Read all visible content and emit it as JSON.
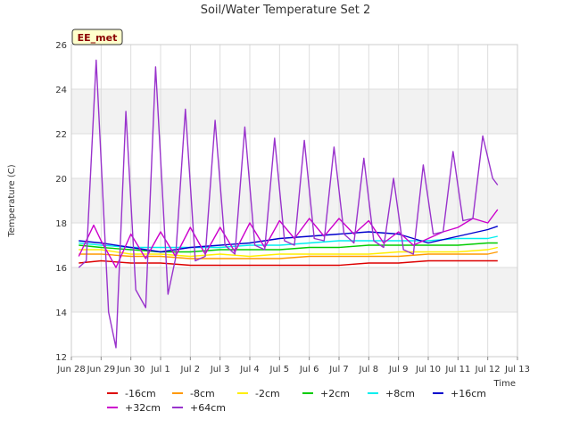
{
  "chart_data": {
    "type": "line",
    "title": "Soil/Water Temperature Set 2",
    "xlabel": "Time",
    "ylabel": "Temperature (C)",
    "ylim": [
      12,
      26
    ],
    "xlim": [
      "2024-06-28",
      "2024-07-13"
    ],
    "y_ticks": [
      12,
      14,
      16,
      18,
      20,
      22,
      24,
      26
    ],
    "x_ticks": [
      "Jun 28",
      "Jun 29",
      "Jun 30",
      "Jul 1",
      "Jul 2",
      "Jul 3",
      "Jul 4",
      "Jul 5",
      "Jul 6",
      "Jul 7",
      "Jul 8",
      "Jul 9",
      "Jul 10",
      "Jul 11",
      "Jul 12",
      "Jul 13"
    ],
    "x_tick_labels": [
      "Jun 28",
      "Jun 29",
      "Jun 30",
      "Jul 1",
      "Jul 2",
      "Jul 3",
      "Jul 4",
      "Jul 5",
      "Jul 6",
      "Jul 7",
      "Jul 8",
      "Jul 9",
      "Jul 10",
      "Jul 11",
      "Jul 12",
      "Jul 13"
    ],
    "grid": true,
    "legend_position": "bottom",
    "station_badge": "EE_met",
    "series": [
      {
        "name": "-16cm",
        "color": "#dd0000",
        "x": [
          "2024-06-28 06:00",
          "2024-06-29 00:00",
          "2024-06-30 00:00",
          "2024-07-01 00:00",
          "2024-07-02 00:00",
          "2024-07-03 00:00",
          "2024-07-04 00:00",
          "2024-07-05 00:00",
          "2024-07-06 00:00",
          "2024-07-07 00:00",
          "2024-07-08 00:00",
          "2024-07-09 00:00",
          "2024-07-10 00:00",
          "2024-07-11 00:00",
          "2024-07-12 00:00",
          "2024-07-12 08:00"
        ],
        "y": [
          16.2,
          16.3,
          16.2,
          16.2,
          16.1,
          16.1,
          16.1,
          16.1,
          16.1,
          16.1,
          16.2,
          16.2,
          16.3,
          16.3,
          16.3,
          16.3
        ]
      },
      {
        "name": "-8cm",
        "color": "#ff9900",
        "x": [
          "2024-06-28 06:00",
          "2024-06-29 00:00",
          "2024-06-30 00:00",
          "2024-07-01 00:00",
          "2024-07-02 00:00",
          "2024-07-03 00:00",
          "2024-07-04 00:00",
          "2024-07-05 00:00",
          "2024-07-06 00:00",
          "2024-07-07 00:00",
          "2024-07-08 00:00",
          "2024-07-09 00:00",
          "2024-07-10 00:00",
          "2024-07-11 00:00",
          "2024-07-12 00:00",
          "2024-07-12 08:00"
        ],
        "y": [
          16.6,
          16.6,
          16.5,
          16.5,
          16.4,
          16.4,
          16.4,
          16.4,
          16.5,
          16.5,
          16.5,
          16.5,
          16.6,
          16.6,
          16.6,
          16.7
        ]
      },
      {
        "name": "-2cm",
        "color": "#ffee00",
        "x": [
          "2024-06-28 06:00",
          "2024-06-29 00:00",
          "2024-06-30 00:00",
          "2024-07-01 00:00",
          "2024-07-02 00:00",
          "2024-07-03 00:00",
          "2024-07-04 00:00",
          "2024-07-05 00:00",
          "2024-07-06 00:00",
          "2024-07-07 00:00",
          "2024-07-08 00:00",
          "2024-07-09 00:00",
          "2024-07-10 00:00",
          "2024-07-11 00:00",
          "2024-07-12 00:00",
          "2024-07-12 08:00"
        ],
        "y": [
          16.8,
          16.8,
          16.6,
          16.6,
          16.5,
          16.6,
          16.5,
          16.6,
          16.6,
          16.6,
          16.6,
          16.7,
          16.7,
          16.7,
          16.8,
          16.9
        ]
      },
      {
        "name": "+2cm",
        "color": "#00cc00",
        "x": [
          "2024-06-28 06:00",
          "2024-06-29 00:00",
          "2024-06-30 00:00",
          "2024-07-01 00:00",
          "2024-07-02 00:00",
          "2024-07-03 00:00",
          "2024-07-04 00:00",
          "2024-07-05 00:00",
          "2024-07-06 00:00",
          "2024-07-07 00:00",
          "2024-07-08 00:00",
          "2024-07-09 00:00",
          "2024-07-10 00:00",
          "2024-07-11 00:00",
          "2024-07-12 00:00",
          "2024-07-12 08:00"
        ],
        "y": [
          17.0,
          16.9,
          16.8,
          16.7,
          16.7,
          16.8,
          16.8,
          16.8,
          16.9,
          16.9,
          17.0,
          17.0,
          17.0,
          17.0,
          17.1,
          17.1
        ]
      },
      {
        "name": "+8cm",
        "color": "#00eeee",
        "x": [
          "2024-06-28 06:00",
          "2024-06-29 00:00",
          "2024-06-30 00:00",
          "2024-07-01 00:00",
          "2024-07-02 00:00",
          "2024-07-03 00:00",
          "2024-07-04 00:00",
          "2024-07-05 00:00",
          "2024-07-06 00:00",
          "2024-07-07 00:00",
          "2024-07-08 00:00",
          "2024-07-09 00:00",
          "2024-07-10 00:00",
          "2024-07-11 00:00",
          "2024-07-12 00:00",
          "2024-07-12 08:00"
        ],
        "y": [
          17.1,
          17.0,
          16.9,
          16.9,
          16.9,
          16.9,
          17.0,
          17.0,
          17.1,
          17.2,
          17.2,
          17.2,
          17.2,
          17.3,
          17.3,
          17.4
        ]
      },
      {
        "name": "+16cm",
        "color": "#0000cc",
        "x": [
          "2024-06-28 06:00",
          "2024-06-29 00:00",
          "2024-06-30 00:00",
          "2024-07-01 00:00",
          "2024-07-02 00:00",
          "2024-07-03 00:00",
          "2024-07-04 00:00",
          "2024-07-05 00:00",
          "2024-07-06 00:00",
          "2024-07-07 00:00",
          "2024-07-08 00:00",
          "2024-07-09 00:00",
          "2024-07-10 00:00",
          "2024-07-11 00:00",
          "2024-07-12 00:00",
          "2024-07-12 08:00"
        ],
        "y": [
          17.2,
          17.1,
          16.9,
          16.7,
          16.9,
          17.0,
          17.1,
          17.3,
          17.4,
          17.5,
          17.6,
          17.5,
          17.1,
          17.4,
          17.7,
          17.85
        ]
      },
      {
        "name": "+32cm",
        "color": "#cc00cc",
        "x": [
          "2024-06-28 06:00",
          "2024-06-28 18:00",
          "2024-06-29 00:00",
          "2024-06-29 12:00",
          "2024-06-30 00:00",
          "2024-06-30 12:00",
          "2024-07-01 00:00",
          "2024-07-01 12:00",
          "2024-07-02 00:00",
          "2024-07-02 12:00",
          "2024-07-03 00:00",
          "2024-07-03 12:00",
          "2024-07-04 00:00",
          "2024-07-04 12:00",
          "2024-07-05 00:00",
          "2024-07-05 12:00",
          "2024-07-06 00:00",
          "2024-07-06 12:00",
          "2024-07-07 00:00",
          "2024-07-07 12:00",
          "2024-07-08 00:00",
          "2024-07-08 12:00",
          "2024-07-09 00:00",
          "2024-07-09 12:00",
          "2024-07-10 00:00",
          "2024-07-10 12:00",
          "2024-07-11 00:00",
          "2024-07-11 12:00",
          "2024-07-12 00:00",
          "2024-07-12 08:00"
        ],
        "y": [
          16.5,
          17.9,
          17.2,
          16.0,
          17.5,
          16.4,
          17.6,
          16.5,
          17.8,
          16.6,
          17.8,
          16.7,
          18.0,
          16.9,
          18.1,
          17.3,
          18.2,
          17.4,
          18.2,
          17.5,
          18.1,
          17.1,
          17.6,
          17.0,
          17.3,
          17.6,
          17.8,
          18.2,
          18.0,
          18.6
        ]
      },
      {
        "name": "+64cm",
        "color": "#9933cc",
        "x": [
          "2024-06-28 06:00",
          "2024-06-28 12:00",
          "2024-06-28 20:00",
          "2024-06-29 06:00",
          "2024-06-29 12:00",
          "2024-06-29 20:00",
          "2024-06-30 04:00",
          "2024-06-30 12:00",
          "2024-06-30 20:00",
          "2024-07-01 06:00",
          "2024-07-01 12:00",
          "2024-07-01 20:00",
          "2024-07-02 04:00",
          "2024-07-02 12:00",
          "2024-07-02 20:00",
          "2024-07-03 04:00",
          "2024-07-03 12:00",
          "2024-07-03 20:00",
          "2024-07-04 04:00",
          "2024-07-04 12:00",
          "2024-07-04 20:00",
          "2024-07-05 04:00",
          "2024-07-05 12:00",
          "2024-07-05 20:00",
          "2024-07-06 04:00",
          "2024-07-06 12:00",
          "2024-07-06 20:00",
          "2024-07-07 04:00",
          "2024-07-07 12:00",
          "2024-07-07 20:00",
          "2024-07-08 04:00",
          "2024-07-08 12:00",
          "2024-07-08 20:00",
          "2024-07-09 04:00",
          "2024-07-09 12:00",
          "2024-07-09 20:00",
          "2024-07-10 04:00",
          "2024-07-10 12:00",
          "2024-07-10 20:00",
          "2024-07-11 04:00",
          "2024-07-11 12:00",
          "2024-07-11 20:00",
          "2024-07-12 04:00",
          "2024-07-12 08:00"
        ],
        "y": [
          16.0,
          16.3,
          25.3,
          14.0,
          12.4,
          23.0,
          15.0,
          14.2,
          25.0,
          14.8,
          16.4,
          23.1,
          16.3,
          16.5,
          22.6,
          17.0,
          16.6,
          22.3,
          17.0,
          16.8,
          21.8,
          17.2,
          17.0,
          21.7,
          17.3,
          17.2,
          21.4,
          17.5,
          17.1,
          20.9,
          17.2,
          16.9,
          20.0,
          16.8,
          16.6,
          20.6,
          17.5,
          17.6,
          21.2,
          18.1,
          18.2,
          21.9,
          20.0,
          19.7
        ]
      }
    ]
  }
}
